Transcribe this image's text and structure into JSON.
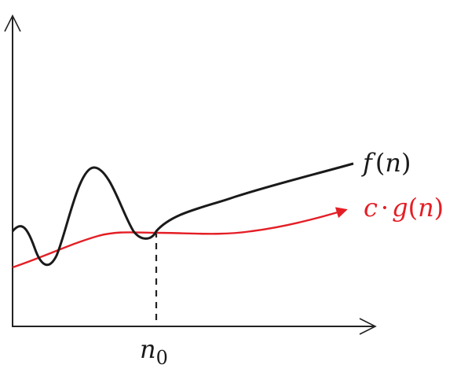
{
  "labels": {
    "f": "f",
    "f_open": "(",
    "f_arg": "n",
    "f_close": ")",
    "g_c": "c",
    "g_dot": "·",
    "g_g": "g",
    "g_open": "(",
    "g_arg": "n",
    "g_close": ")",
    "n0_base": "n",
    "n0_sub": "0"
  },
  "colors": {
    "axis": "#222222",
    "f_curve": "#1a1a1a",
    "g_curve": "#e41e25",
    "dashed": "#222222",
    "background": "#ffffff"
  }
}
